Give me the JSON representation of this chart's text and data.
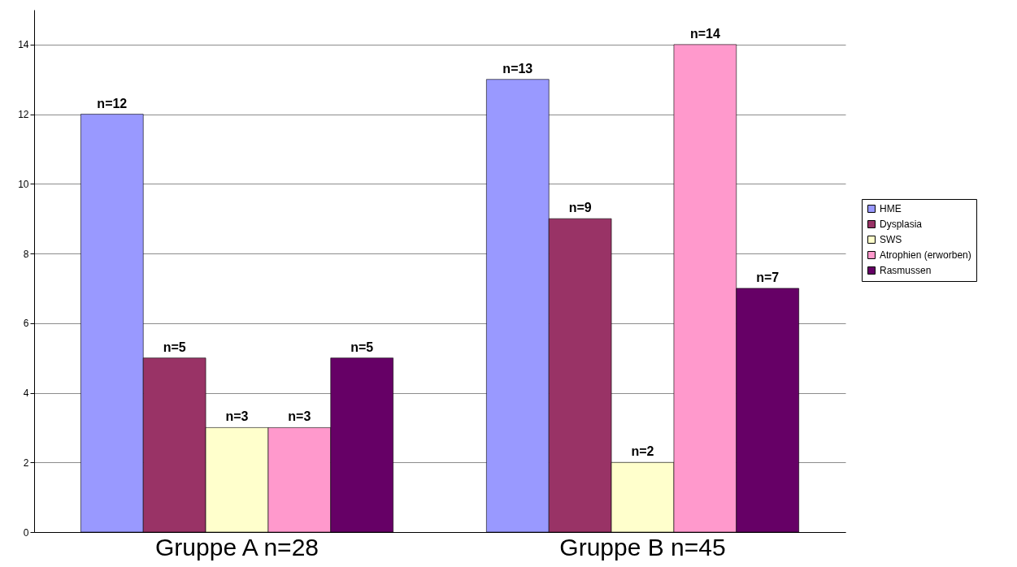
{
  "chart_data": {
    "type": "bar",
    "categories": [
      "Gruppe A n=28",
      "Gruppe B n=45"
    ],
    "series": [
      {
        "name": "HME",
        "color": "#9999ff",
        "values": [
          12,
          13
        ],
        "value_labels": [
          "n=12",
          "n=13"
        ]
      },
      {
        "name": "Dysplasia",
        "color": "#993366",
        "values": [
          5,
          9
        ],
        "value_labels": [
          "n=5",
          "n=9"
        ]
      },
      {
        "name": "SWS",
        "color": "#ffffcc",
        "values": [
          3,
          2
        ],
        "value_labels": [
          "n=3",
          "n=2"
        ]
      },
      {
        "name": "Atrophien (erworben)",
        "color": "#ff99cc",
        "values": [
          3,
          14
        ],
        "value_labels": [
          "n=3",
          "n=14"
        ]
      },
      {
        "name": "Rasmussen",
        "color": "#660066",
        "values": [
          5,
          7
        ],
        "value_labels": [
          "n=5",
          "n=7"
        ]
      }
    ],
    "ylim": [
      0,
      15
    ],
    "yticks": [
      0,
      2,
      4,
      6,
      8,
      10,
      12,
      14
    ],
    "grid": "y",
    "legend": "right"
  }
}
